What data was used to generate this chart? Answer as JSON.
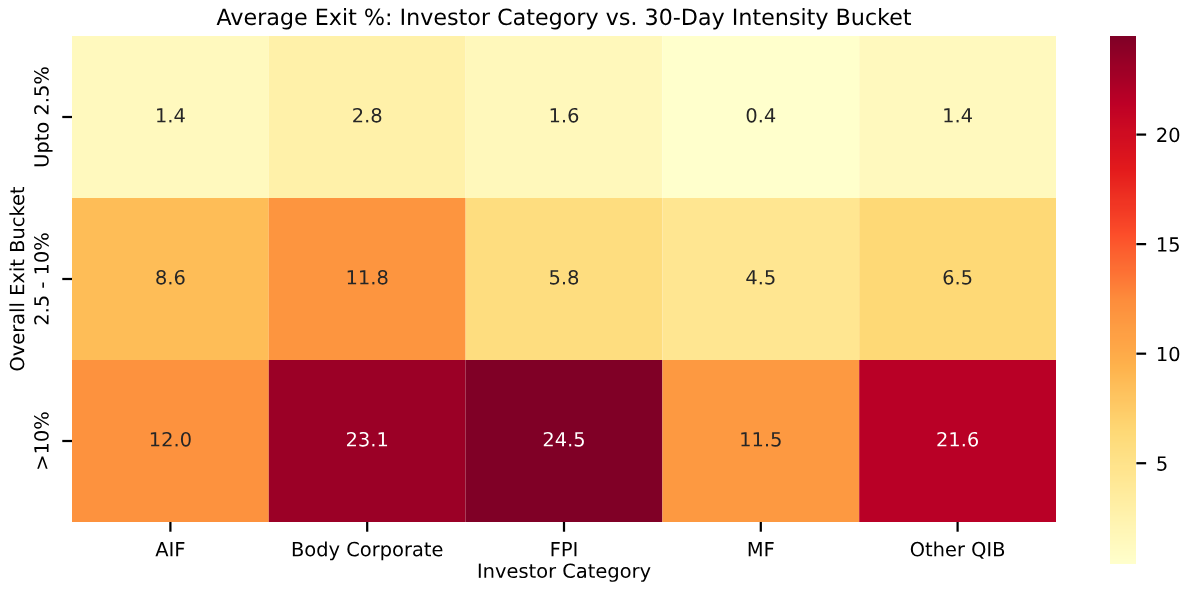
{
  "chart_data": {
    "type": "heatmap",
    "title": "Average Exit %: Investor Category vs. 30-Day Intensity Bucket",
    "xlabel": "Investor Category",
    "ylabel": "Overall Exit Bucket",
    "categories": [
      "AIF",
      "Body Corporate",
      "FPI",
      "MF",
      "Other QIB"
    ],
    "y_categories": [
      "Upto 2.5%",
      "2.5 - 10%",
      ">10%"
    ],
    "cells": [
      [
        1.4,
        2.8,
        1.6,
        0.4,
        1.4
      ],
      [
        8.6,
        11.8,
        5.8,
        4.5,
        6.5
      ],
      [
        12.0,
        23.1,
        24.5,
        11.5,
        21.6
      ]
    ],
    "cell_labels": [
      [
        "1.4",
        "2.8",
        "1.6",
        "0.4",
        "1.4"
      ],
      [
        "8.6",
        "11.8",
        "5.8",
        "4.5",
        "6.5"
      ],
      [
        "12.0",
        "23.1",
        "24.5",
        "11.5",
        "21.6"
      ]
    ],
    "clim": [
      0.4,
      24.5
    ],
    "cticks": [
      5,
      10,
      15,
      20
    ]
  }
}
